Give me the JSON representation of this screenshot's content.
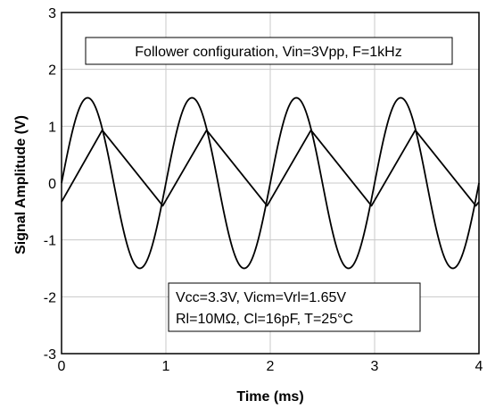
{
  "chart_data": {
    "type": "line",
    "title": "",
    "xlabel": "Time (ms)",
    "ylabel": "Signal Amplitude (V)",
    "xlim": [
      0,
      4
    ],
    "ylim": [
      -3,
      3
    ],
    "xticks": [
      0,
      1,
      2,
      3,
      4
    ],
    "yticks": [
      -3,
      -2,
      -1,
      0,
      1,
      2,
      3
    ],
    "grid": true,
    "annotations": [
      {
        "id": "config",
        "text": "Follower configuration, Vin=3Vpp, F=1kHz"
      },
      {
        "id": "cond1",
        "text": "Vcc=3.3V, Vicm=Vrl=1.65V"
      },
      {
        "id": "cond2",
        "text": "Rl=10MΩ, Cl=16pF, T=25°C"
      }
    ],
    "series": [
      {
        "name": "",
        "style": "sine",
        "x": [
          0,
          0.125,
          0.25,
          0.375,
          0.5,
          0.625,
          0.75,
          0.875,
          1.0,
          1.125,
          1.25,
          1.375,
          1.5,
          1.625,
          1.75,
          1.875,
          2.0,
          2.125,
          2.25,
          2.375,
          2.5,
          2.625,
          2.75,
          2.875,
          3.0,
          3.125,
          3.25,
          3.375,
          3.5,
          3.625,
          3.75,
          3.875,
          4.0
        ],
        "y": [
          0,
          1.06,
          1.5,
          1.06,
          0,
          -1.06,
          -1.5,
          -1.06,
          0,
          1.06,
          1.5,
          1.06,
          0,
          -1.06,
          -1.5,
          -1.06,
          0,
          1.06,
          1.5,
          1.06,
          0,
          -1.06,
          -1.5,
          -1.06,
          0,
          1.06,
          1.5,
          1.06,
          0,
          -1.06,
          -1.5,
          -1.06,
          0
        ]
      },
      {
        "name": "",
        "style": "triangle",
        "x": [
          0,
          0.39,
          0.97,
          1.39,
          1.97,
          2.39,
          2.97,
          3.39,
          3.97,
          4.0
        ],
        "y": [
          -0.33,
          0.93,
          -0.4,
          0.93,
          -0.4,
          0.93,
          -0.4,
          0.93,
          -0.4,
          -0.33
        ]
      }
    ]
  }
}
